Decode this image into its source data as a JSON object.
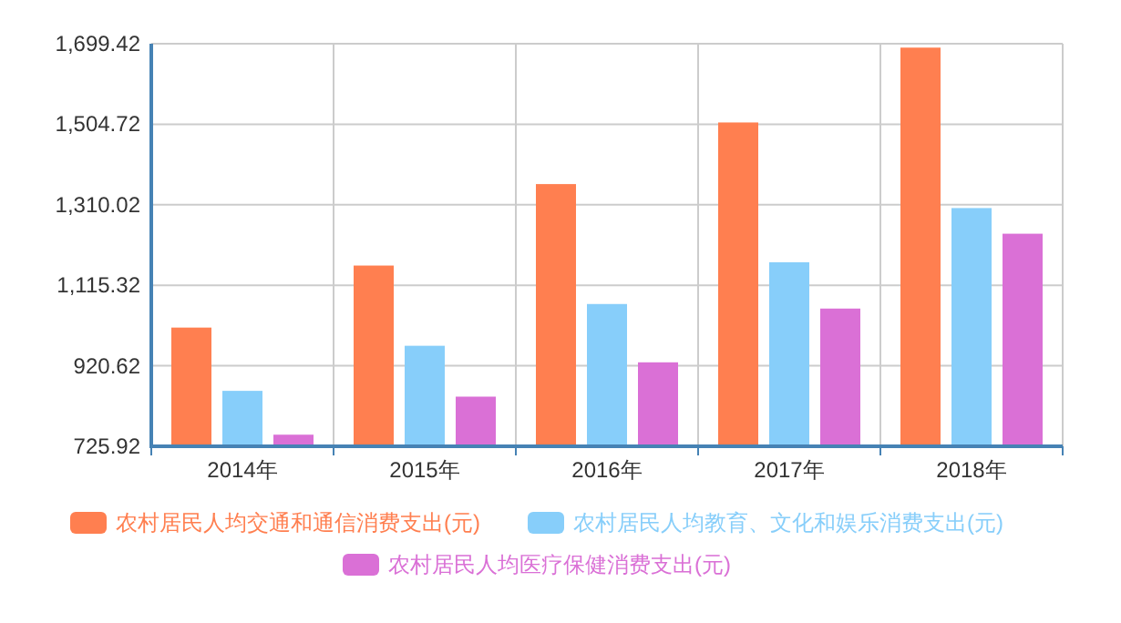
{
  "chart_data": {
    "type": "bar",
    "categories": [
      "2014年",
      "2015年",
      "2016年",
      "2017年",
      "2018年"
    ],
    "series": [
      {
        "name": "农村居民人均交通和通信消费支出(元)",
        "color": "#ff7f50",
        "values": [
          1013,
          1163,
          1360,
          1509,
          1690
        ]
      },
      {
        "name": "农村居民人均教育、文化和娱乐消费支出(元)",
        "color": "#87cefa",
        "values": [
          860,
          969,
          1070,
          1171,
          1302
        ]
      },
      {
        "name": "农村居民人均医疗保健消费支出(元)",
        "color": "#da70d6",
        "values": [
          754,
          846,
          929,
          1059,
          1240
        ]
      }
    ],
    "ylim": [
      725.92,
      1699.42
    ],
    "yticks": [
      {
        "value": 725.92,
        "label": "725.92"
      },
      {
        "value": 920.62,
        "label": "920.62"
      },
      {
        "value": 1115.32,
        "label": "1,115.32"
      },
      {
        "value": 1310.02,
        "label": "1,310.02"
      },
      {
        "value": 1504.72,
        "label": "1,504.72"
      },
      {
        "value": 1699.42,
        "label": "1,699.42"
      }
    ],
    "grid": true,
    "legend": "bottom"
  }
}
